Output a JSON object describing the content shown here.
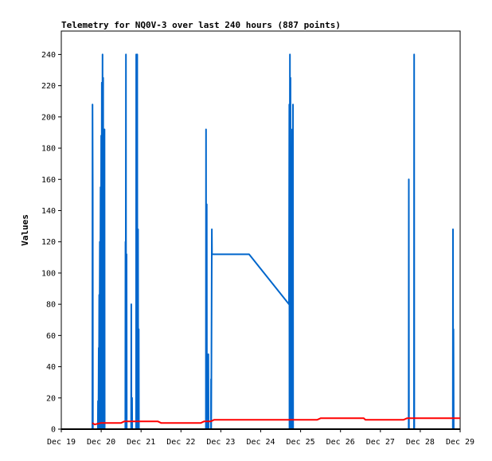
{
  "chart_data": {
    "type": "line",
    "title": "Telemetry for NQ0V-3 over last 240 hours (887 points)",
    "xlabel": "",
    "ylabel": "Values",
    "ylim": [
      0,
      255
    ],
    "xlim": [
      0,
      240
    ],
    "x_unit": "hours",
    "yticks": [
      0,
      20,
      40,
      60,
      80,
      100,
      120,
      140,
      160,
      180,
      200,
      220,
      240
    ],
    "xticks": [
      {
        "x": 0,
        "label": "Dec 19"
      },
      {
        "x": 24,
        "label": "Dec 20"
      },
      {
        "x": 48,
        "label": "Dec 21"
      },
      {
        "x": 72,
        "label": "Dec 22"
      },
      {
        "x": 96,
        "label": "Dec 23"
      },
      {
        "x": 120,
        "label": "Dec 24"
      },
      {
        "x": 144,
        "label": "Dec 25"
      },
      {
        "x": 168,
        "label": "Dec 26"
      },
      {
        "x": 192,
        "label": "Dec 27"
      },
      {
        "x": 216,
        "label": "Dec 28"
      },
      {
        "x": 240,
        "label": "Dec 29"
      }
    ],
    "grid": false,
    "legend": "none",
    "series": [
      {
        "color": "#0066cc",
        "points": [
          [
            18.7,
            0
          ],
          [
            18.8,
            208
          ],
          [
            18.9,
            152
          ],
          [
            19.0,
            0
          ],
          [
            22.0,
            0
          ],
          [
            22.1,
            18
          ],
          [
            22.3,
            0
          ],
          [
            22.5,
            52
          ],
          [
            22.6,
            0
          ],
          [
            22.8,
            86
          ],
          [
            22.9,
            0
          ],
          [
            23.2,
            120
          ],
          [
            23.3,
            0
          ],
          [
            23.6,
            155
          ],
          [
            23.7,
            0
          ],
          [
            24.0,
            188
          ],
          [
            24.1,
            0
          ],
          [
            24.4,
            222
          ],
          [
            24.5,
            0
          ],
          [
            24.8,
            240
          ],
          [
            24.9,
            0
          ],
          [
            25.2,
            225
          ],
          [
            25.3,
            0
          ],
          [
            25.6,
            192
          ],
          [
            25.7,
            0
          ],
          [
            26.0,
            192
          ],
          [
            26.1,
            0
          ],
          [
            38.5,
            0
          ],
          [
            38.6,
            120
          ],
          [
            38.7,
            0
          ],
          [
            38.9,
            240
          ],
          [
            39.0,
            0
          ],
          [
            39.3,
            112
          ],
          [
            39.4,
            0
          ],
          [
            42.0,
            0
          ],
          [
            42.1,
            80
          ],
          [
            42.2,
            0
          ],
          [
            42.6,
            20
          ],
          [
            42.7,
            0
          ],
          [
            45.0,
            0
          ],
          [
            45.1,
            240
          ],
          [
            45.2,
            0
          ],
          [
            45.7,
            240
          ],
          [
            45.8,
            0
          ],
          [
            46.2,
            128
          ],
          [
            46.3,
            0
          ],
          [
            46.6,
            64
          ],
          [
            46.7,
            0
          ],
          [
            87.0,
            0
          ],
          [
            87.1,
            192
          ],
          [
            87.2,
            0
          ],
          [
            87.5,
            144
          ],
          [
            87.6,
            0
          ],
          [
            88.0,
            24
          ],
          [
            88.1,
            0
          ],
          [
            88.5,
            48
          ],
          [
            88.6,
            0
          ],
          [
            90.0,
            0
          ],
          [
            90.1,
            32
          ],
          [
            90.2,
            0
          ],
          [
            90.6,
            128
          ],
          [
            90.7,
            112
          ],
          [
            113.0,
            112
          ],
          [
            137.0,
            80
          ],
          [
            137.2,
            208
          ],
          [
            137.3,
            0
          ],
          [
            137.6,
            240
          ],
          [
            137.7,
            0
          ],
          [
            137.9,
            225
          ],
          [
            138.0,
            0
          ],
          [
            138.4,
            112
          ],
          [
            138.5,
            0
          ],
          [
            138.9,
            192
          ],
          [
            139.0,
            0
          ],
          [
            139.4,
            208
          ],
          [
            139.5,
            0
          ],
          [
            209.0,
            0
          ],
          [
            209.1,
            160
          ],
          [
            209.2,
            0
          ],
          [
            212.2,
            0
          ],
          [
            212.3,
            240
          ],
          [
            212.4,
            0
          ],
          [
            235.6,
            0
          ],
          [
            235.7,
            128
          ],
          [
            235.8,
            0
          ],
          [
            236.0,
            64
          ],
          [
            236.1,
            0
          ]
        ]
      },
      {
        "color": "#ff0000",
        "points": [
          [
            18.7,
            4
          ],
          [
            20,
            3
          ],
          [
            24,
            4
          ],
          [
            26,
            4
          ],
          [
            36,
            4
          ],
          [
            38,
            5
          ],
          [
            40,
            5
          ],
          [
            48,
            5
          ],
          [
            50,
            5
          ],
          [
            58,
            5
          ],
          [
            60,
            4
          ],
          [
            76,
            4
          ],
          [
            78,
            4
          ],
          [
            84,
            4
          ],
          [
            86,
            5
          ],
          [
            90,
            5
          ],
          [
            92,
            6
          ],
          [
            130,
            6
          ],
          [
            150,
            6
          ],
          [
            154,
            6
          ],
          [
            156,
            7
          ],
          [
            170,
            7
          ],
          [
            174,
            7
          ],
          [
            182,
            7
          ],
          [
            183,
            6
          ],
          [
            206,
            6
          ],
          [
            208,
            7
          ],
          [
            240,
            7
          ]
        ]
      }
    ]
  }
}
